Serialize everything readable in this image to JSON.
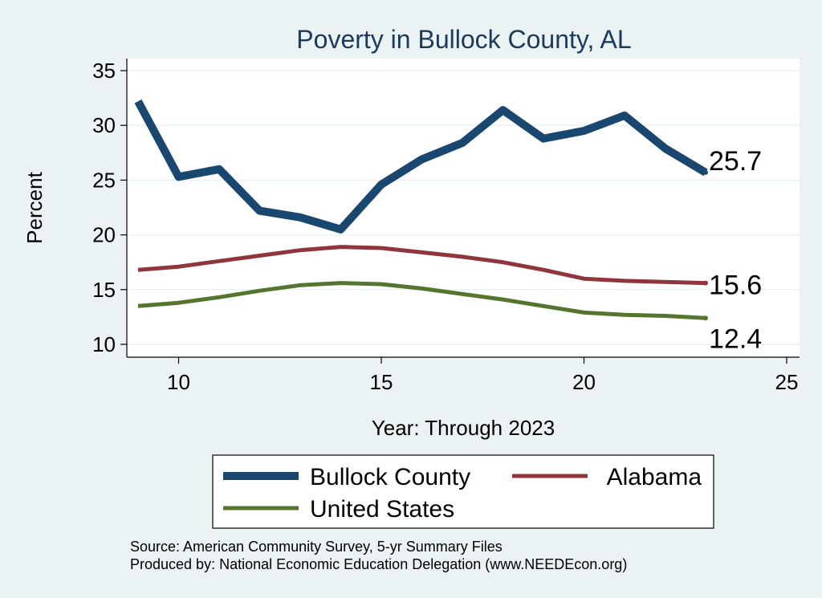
{
  "chart_data": {
    "type": "line",
    "title": "Poverty in Bullock County, AL",
    "xlabel": "Year: Through 2023",
    "ylabel": "Percent",
    "xlim": [
      9,
      25
    ],
    "ylim": [
      10,
      35.5
    ],
    "xticks": [
      10,
      15,
      20,
      25
    ],
    "yticks": [
      10,
      15,
      20,
      25,
      30,
      35
    ],
    "grid": true,
    "x": [
      9,
      10,
      11,
      12,
      13,
      14,
      15,
      16,
      17,
      18,
      19,
      20,
      21,
      22,
      23
    ],
    "series": [
      {
        "name": "Bullock County",
        "color": "#1a476f",
        "values": [
          32.2,
          25.3,
          26.0,
          22.2,
          21.6,
          20.5,
          24.6,
          26.9,
          28.4,
          31.4,
          28.8,
          29.5,
          30.9,
          27.9,
          25.7
        ],
        "end_label": "25.7"
      },
      {
        "name": "Alabama",
        "color": "#90353b",
        "values": [
          16.8,
          17.1,
          17.6,
          18.1,
          18.6,
          18.9,
          18.8,
          18.4,
          18.0,
          17.5,
          16.8,
          16.0,
          15.8,
          15.7,
          15.6
        ],
        "end_label": "15.6"
      },
      {
        "name": "United States",
        "color": "#55752f",
        "values": [
          13.5,
          13.8,
          14.3,
          14.9,
          15.4,
          15.6,
          15.5,
          15.1,
          14.6,
          14.1,
          13.5,
          12.9,
          12.7,
          12.6,
          12.4
        ],
        "end_label": "12.4"
      }
    ],
    "legend": {
      "position": "bottom",
      "entries": [
        "Bullock County",
        "Alabama",
        "United States"
      ]
    }
  },
  "notes": {
    "source": "Source: American Community Survey, 5-yr Summary Files",
    "produced": "Produced by: National Economic Education Delegation (www.NEEDEcon.org)"
  }
}
